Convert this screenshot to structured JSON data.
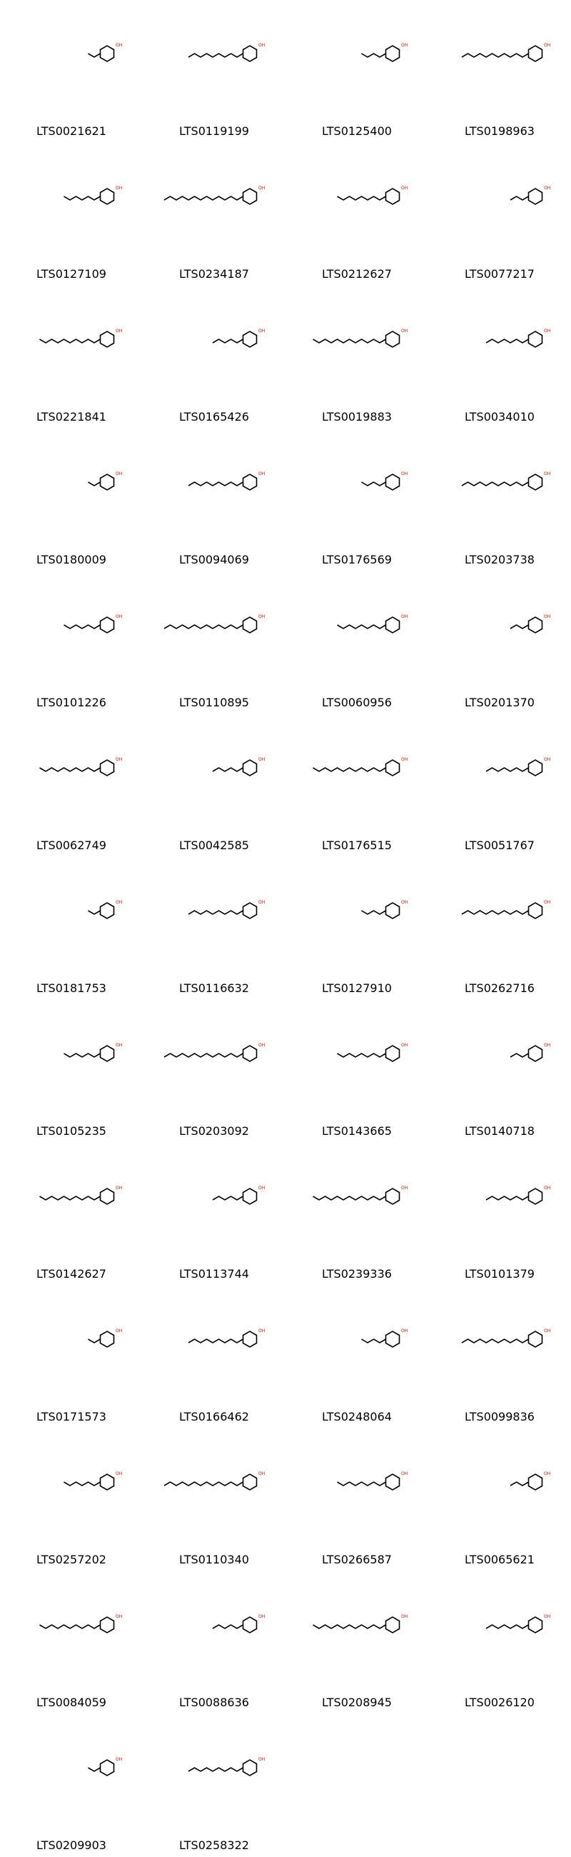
{
  "colors": {
    "bond": "#000000",
    "oxygen": "#ff0000",
    "sulfur": "#cccc00"
  },
  "compounds": [
    {
      "id": "LTS0021621"
    },
    {
      "id": "LTS0119199"
    },
    {
      "id": "LTS0125400"
    },
    {
      "id": "LTS0198963"
    },
    {
      "id": "LTS0127109"
    },
    {
      "id": "LTS0234187"
    },
    {
      "id": "LTS0212627"
    },
    {
      "id": "LTS0077217"
    },
    {
      "id": "LTS0221841"
    },
    {
      "id": "LTS0165426"
    },
    {
      "id": "LTS0019883"
    },
    {
      "id": "LTS0034010"
    },
    {
      "id": "LTS0180009"
    },
    {
      "id": "LTS0094069"
    },
    {
      "id": "LTS0176569"
    },
    {
      "id": "LTS0203738"
    },
    {
      "id": "LTS0101226"
    },
    {
      "id": "LTS0110895"
    },
    {
      "id": "LTS0060956"
    },
    {
      "id": "LTS0201370"
    },
    {
      "id": "LTS0062749"
    },
    {
      "id": "LTS0042585"
    },
    {
      "id": "LTS0176515"
    },
    {
      "id": "LTS0051767"
    },
    {
      "id": "LTS0181753"
    },
    {
      "id": "LTS0116632"
    },
    {
      "id": "LTS0127910"
    },
    {
      "id": "LTS0262716"
    },
    {
      "id": "LTS0105235"
    },
    {
      "id": "LTS0203092"
    },
    {
      "id": "LTS0143665"
    },
    {
      "id": "LTS0140718"
    },
    {
      "id": "LTS0142627"
    },
    {
      "id": "LTS0113744"
    },
    {
      "id": "LTS0239336"
    },
    {
      "id": "LTS0101379"
    },
    {
      "id": "LTS0171573"
    },
    {
      "id": "LTS0166462"
    },
    {
      "id": "LTS0248064"
    },
    {
      "id": "LTS0099836"
    },
    {
      "id": "LTS0257202"
    },
    {
      "id": "LTS0110340"
    },
    {
      "id": "LTS0266587"
    },
    {
      "id": "LTS0065621"
    },
    {
      "id": "LTS0084059"
    },
    {
      "id": "LTS0088636"
    },
    {
      "id": "LTS0208945"
    },
    {
      "id": "LTS0026120"
    },
    {
      "id": "LTS0209903"
    },
    {
      "id": "LTS0258322"
    }
  ]
}
